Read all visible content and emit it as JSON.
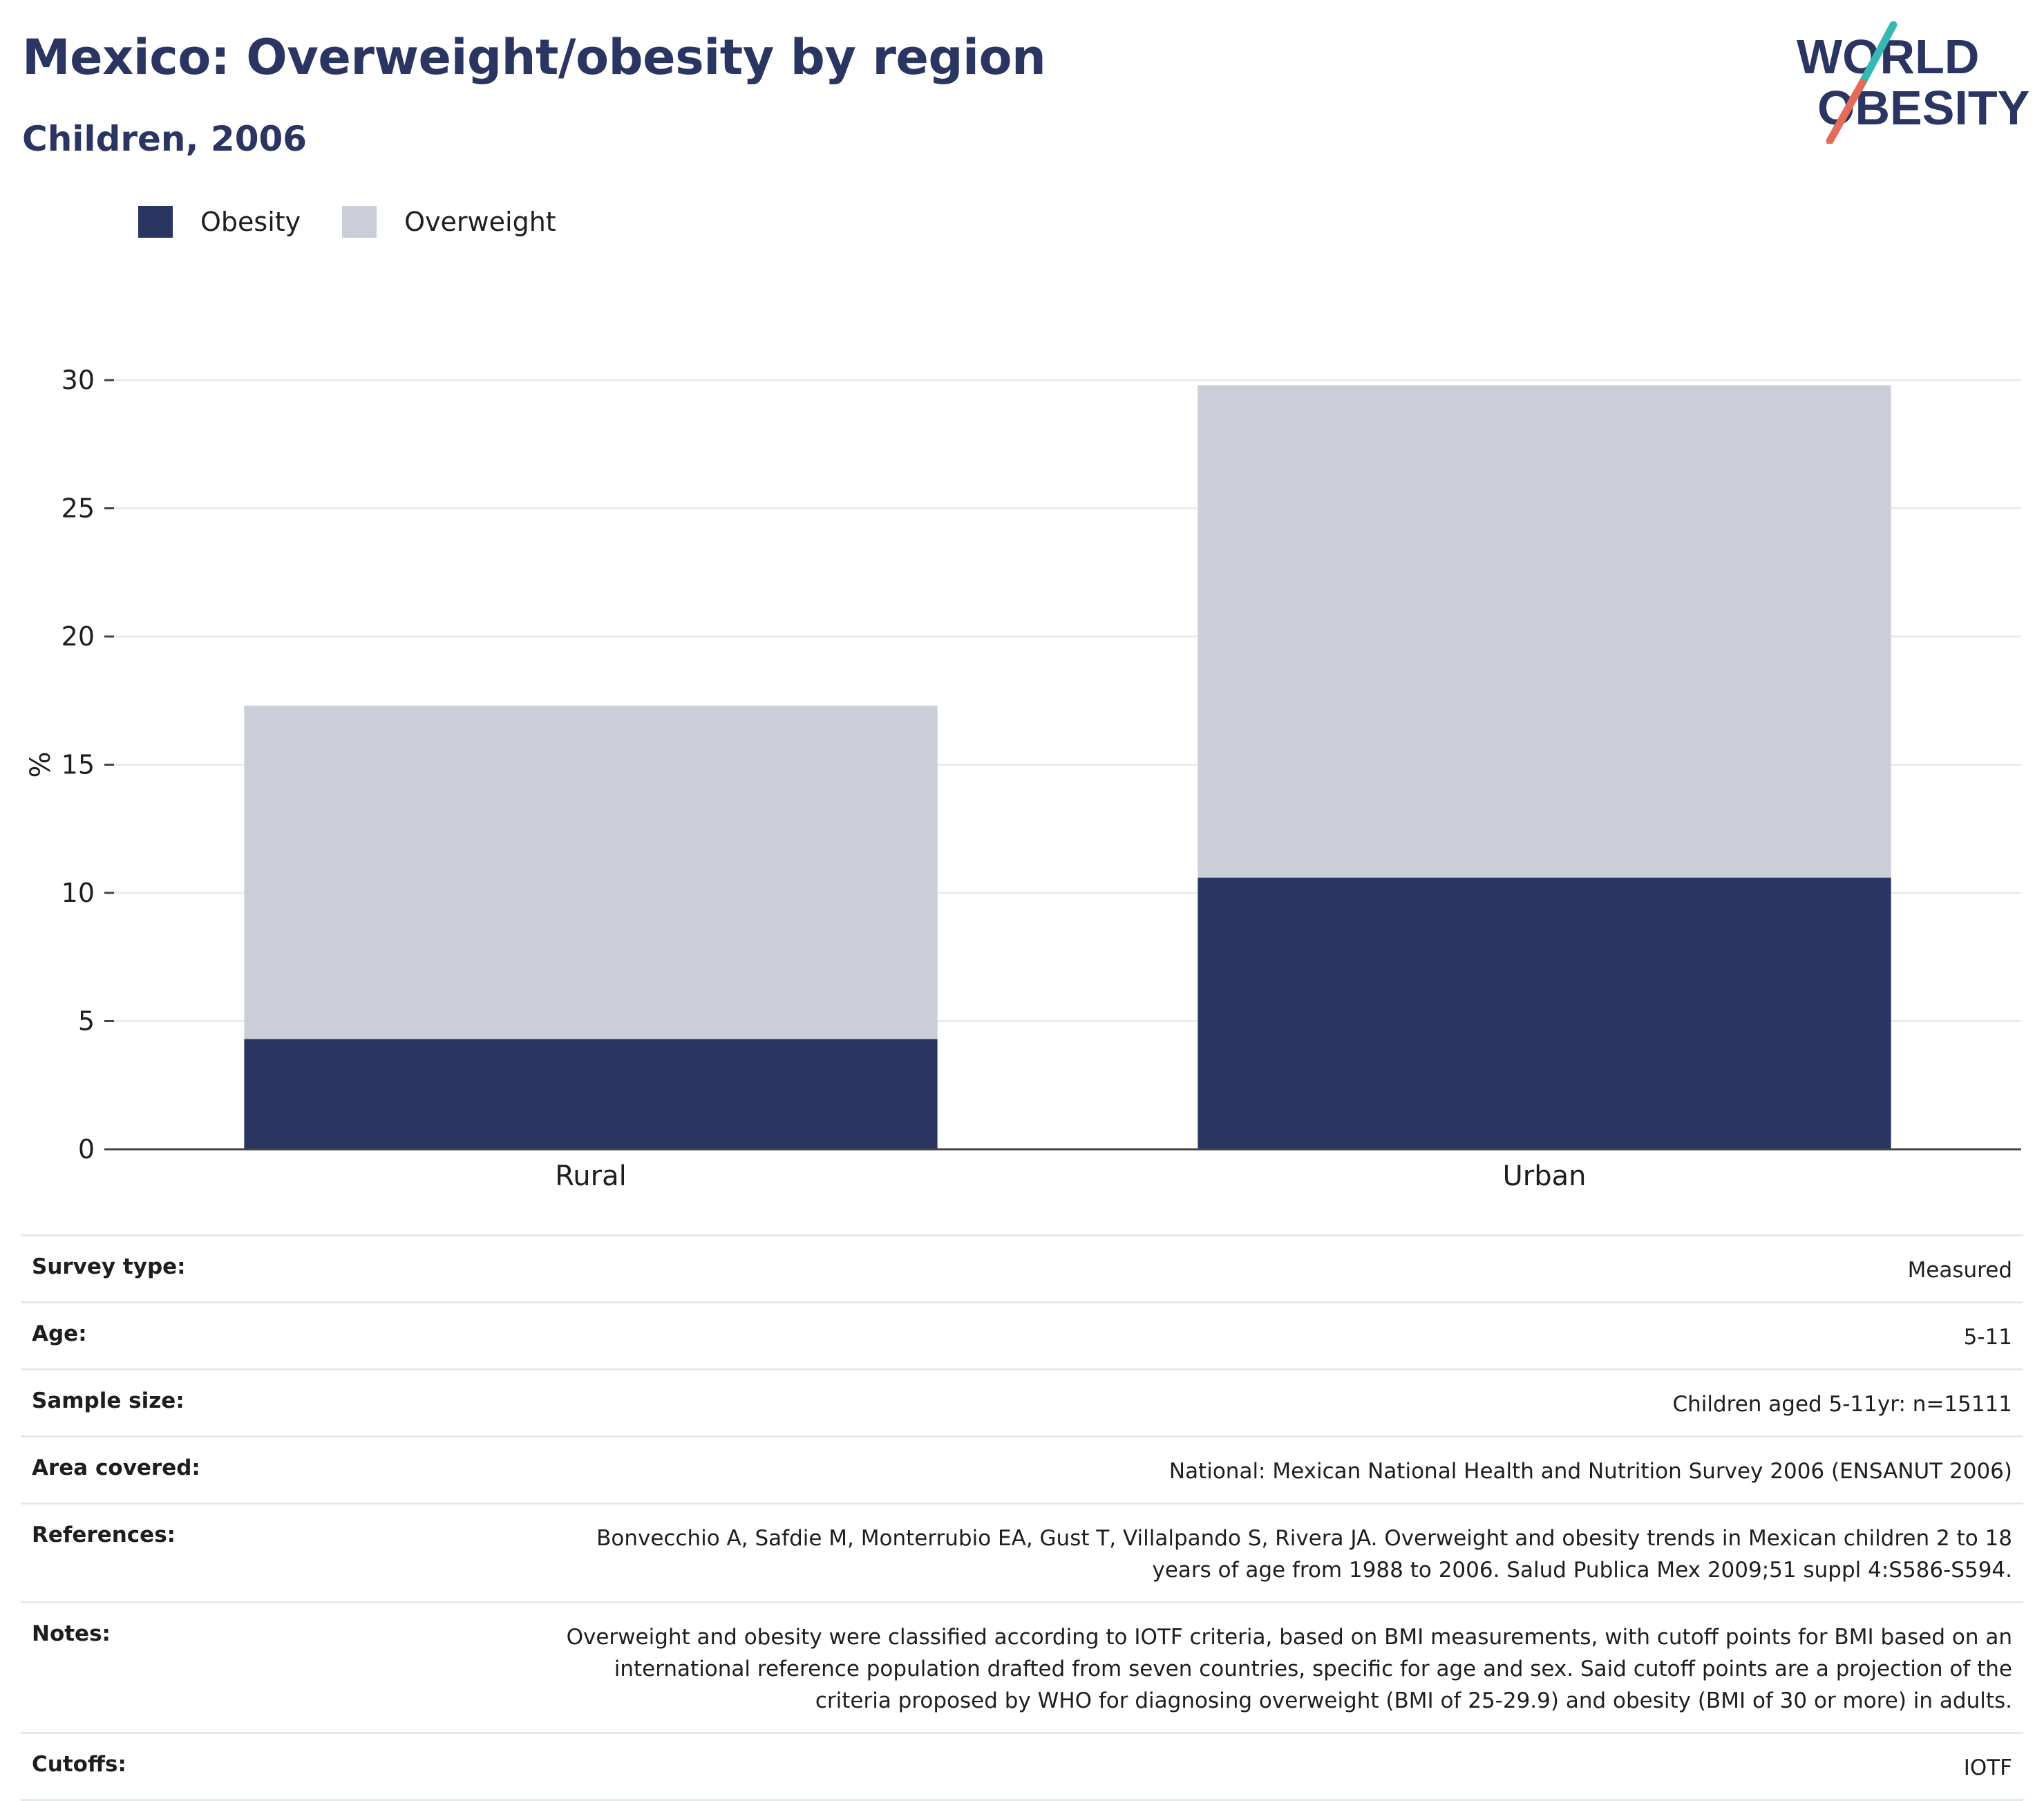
{
  "header": {
    "title": "Mexico: Overweight/obesity by region",
    "subtitle": "Children, 2006"
  },
  "logo": {
    "line1": "WORLD",
    "line2": "OBESITY",
    "slash_top_color": "#37b8b5",
    "slash_bottom_color": "#e36b5a"
  },
  "legend": [
    {
      "label": "Obesity",
      "color": "#2a3562"
    },
    {
      "label": "Overweight",
      "color": "#cbcdd9"
    }
  ],
  "chart_data": {
    "type": "bar",
    "stacked": true,
    "categories": [
      "Rural",
      "Urban"
    ],
    "series": [
      {
        "name": "Obesity",
        "values": [
          4.3,
          10.6
        ],
        "color": "#2a3562"
      },
      {
        "name": "Overweight",
        "values": [
          13.0,
          19.2
        ],
        "color": "#cbcdd9"
      }
    ],
    "ylabel": "%",
    "xlabel": "",
    "ylim": [
      0,
      30
    ],
    "yticks": [
      0,
      5,
      10,
      15,
      20,
      25,
      30
    ],
    "grid": true,
    "legend_position": "top-left"
  },
  "meta": [
    {
      "label": "Survey type:",
      "value": "Measured"
    },
    {
      "label": "Age:",
      "value": "5-11"
    },
    {
      "label": "Sample size:",
      "value": "Children aged 5-11yr: n=15111"
    },
    {
      "label": "Area covered:",
      "value": "National: Mexican National Health and Nutrition Survey 2006 (ENSANUT 2006)"
    },
    {
      "label": "References:",
      "value": "Bonvecchio A, Safdie M, Monterrubio EA, Gust T, Villalpando S, Rivera JA. Overweight and obesity trends in Mexican children 2 to 18 years of age from 1988 to 2006. Salud Publica Mex 2009;51 suppl 4:S586-S594."
    },
    {
      "label": "Notes:",
      "value": "Overweight and obesity were classified according to IOTF criteria, based on BMI measurements, with cutoff points for BMI based on an international reference population drafted from seven countries, specific for age and sex. Said cutoff points are a projection of the criteria proposed by WHO for diagnosing overweight (BMI of 25-29.9) and obesity (BMI of 30 or more) in adults."
    },
    {
      "label": "Cutoffs:",
      "value": "IOTF"
    }
  ]
}
